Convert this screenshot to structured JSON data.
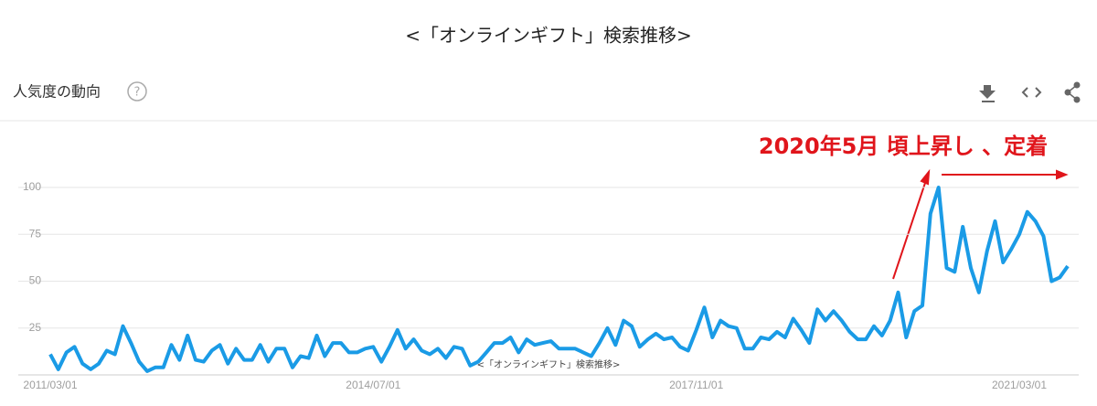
{
  "header": {
    "label": "人気度の動向"
  },
  "chart_data": {
    "type": "line",
    "title": "<「オンラインギフト」検索推移>",
    "annotation": "2020年5月 頃上昇し 、定着",
    "categories": [
      "2011/03/01",
      null,
      null,
      null,
      null,
      null,
      null,
      null,
      null,
      null,
      null,
      null,
      null,
      null,
      null,
      null,
      null,
      null,
      null,
      null,
      null,
      null,
      null,
      null,
      null,
      null,
      null,
      null,
      null,
      null,
      null,
      null,
      null,
      null,
      null,
      null,
      null,
      null,
      null,
      null,
      "2014/07/01",
      null,
      null,
      null,
      null,
      null,
      null,
      null,
      null,
      null,
      null,
      null,
      null,
      null,
      null,
      null,
      null,
      null,
      null,
      null,
      null,
      null,
      null,
      null,
      null,
      null,
      null,
      null,
      null,
      null,
      null,
      null,
      null,
      null,
      null,
      null,
      null,
      null,
      null,
      null,
      "2017/11/01",
      null,
      null,
      null,
      null,
      null,
      null,
      null,
      null,
      null,
      null,
      null,
      null,
      null,
      null,
      null,
      null,
      null,
      null,
      null,
      null,
      null,
      null,
      null,
      null,
      null,
      null,
      null,
      null,
      null,
      null,
      null,
      null,
      null,
      null,
      null,
      null,
      null,
      null,
      null,
      "2021/03/01",
      null,
      null,
      null,
      null,
      null,
      null
    ],
    "values": [
      11,
      3,
      12,
      15,
      6,
      3,
      6,
      13,
      11,
      26,
      17,
      7,
      2,
      4,
      4,
      16,
      8,
      21,
      8,
      7,
      13,
      16,
      6,
      14,
      8,
      8,
      16,
      7,
      14,
      14,
      4,
      10,
      9,
      21,
      10,
      17,
      17,
      12,
      12,
      14,
      15,
      7,
      15,
      24,
      14,
      19,
      13,
      11,
      14,
      9,
      15,
      14,
      5,
      7,
      12,
      17,
      17,
      20,
      12,
      19,
      16,
      17,
      18,
      14,
      14,
      14,
      12,
      10,
      17,
      25,
      16,
      29,
      26,
      15,
      19,
      22,
      19,
      20,
      15,
      13,
      24,
      36,
      20,
      29,
      26,
      25,
      14,
      14,
      20,
      19,
      23,
      20,
      30,
      24,
      17,
      35,
      29,
      34,
      29,
      23,
      19,
      19,
      26,
      21,
      29,
      44,
      20,
      34,
      37,
      86,
      100,
      57,
      55,
      79,
      57,
      44,
      66,
      82,
      60,
      67,
      75,
      87,
      82,
      74,
      50,
      52,
      58
    ],
    "color": "#1a9be6",
    "ylim": [
      0,
      100
    ],
    "yticks": [
      25,
      50,
      75,
      100
    ],
    "grid": true
  }
}
